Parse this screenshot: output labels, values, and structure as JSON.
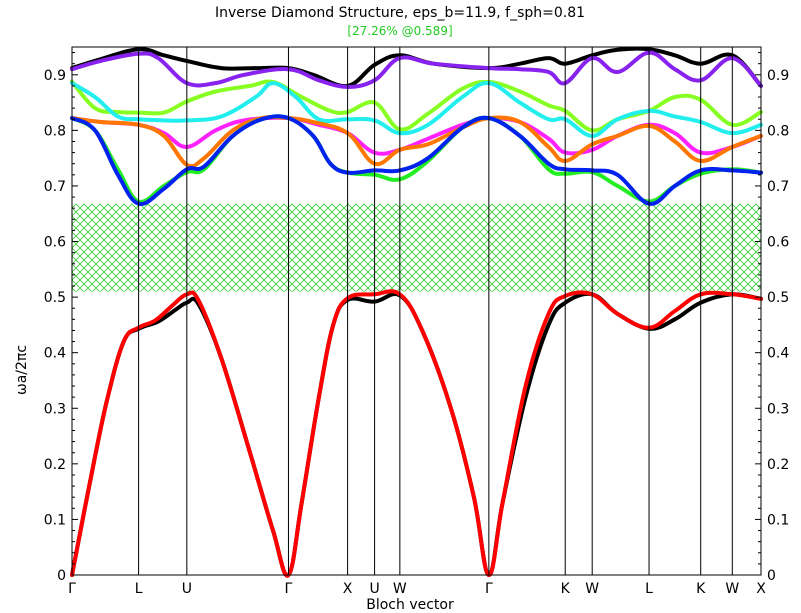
{
  "chart_data": {
    "type": "line",
    "title": "Inverse Diamond Structure, eps_b=11.9, f_sph=0.81",
    "subtitle": "[27.26% @0.589]",
    "subtitle_color": "#22cc22",
    "xlabel": "Bloch vector",
    "ylabel": "ωa/2πc",
    "ylim": [
      0,
      0.95
    ],
    "yticks": [
      "0",
      "0.1",
      "0.2",
      "0.3",
      "0.4",
      "0.5",
      "0.6",
      "0.7",
      "0.8",
      "0.9"
    ],
    "xlim": [
      0,
      12
    ],
    "kpoints": [
      {
        "label": "Γ",
        "x": 0
      },
      {
        "label": "L",
        "x": 1.16
      },
      {
        "label": "U",
        "x": 2.0
      },
      {
        "label": "Γ",
        "x": 3.77
      },
      {
        "label": "X",
        "x": 4.8
      },
      {
        "label": "U",
        "x": 5.27
      },
      {
        "label": "W",
        "x": 5.71
      },
      {
        "label": "Γ",
        "x": 7.26
      },
      {
        "label": "K",
        "x": 8.59
      },
      {
        "label": "W",
        "x": 9.06
      },
      {
        "label": "L",
        "x": 10.05
      },
      {
        "label": "K",
        "x": 10.95
      },
      {
        "label": "W",
        "x": 11.5
      },
      {
        "label": "X",
        "x": 12
      }
    ],
    "gap": {
      "from": 0.51,
      "to": 0.668,
      "color": "#33cc33",
      "label": "27.26% @0.589"
    },
    "grid": false,
    "series": [
      {
        "color": "#ff0000",
        "values": [
          [
            0,
            0
          ],
          [
            0.3,
            0.16
          ],
          [
            0.6,
            0.31
          ],
          [
            0.9,
            0.42
          ],
          [
            1.16,
            0.445
          ],
          [
            1.45,
            0.458
          ],
          [
            1.75,
            0.485
          ],
          [
            2.0,
            0.505
          ],
          [
            2.2,
            0.495
          ],
          [
            2.6,
            0.39
          ],
          [
            3.1,
            0.22
          ],
          [
            3.5,
            0.08
          ],
          [
            3.77,
            0
          ],
          [
            4.0,
            0.13
          ],
          [
            4.3,
            0.32
          ],
          [
            4.55,
            0.45
          ],
          [
            4.8,
            0.498
          ],
          [
            5.27,
            0.505
          ],
          [
            5.71,
            0.505
          ],
          [
            6.1,
            0.44
          ],
          [
            6.6,
            0.3
          ],
          [
            7.0,
            0.14
          ],
          [
            7.26,
            0
          ],
          [
            7.5,
            0.13
          ],
          [
            7.9,
            0.34
          ],
          [
            8.3,
            0.47
          ],
          [
            8.59,
            0.502
          ],
          [
            9.06,
            0.505
          ],
          [
            9.5,
            0.47
          ],
          [
            10.05,
            0.445
          ],
          [
            10.5,
            0.475
          ],
          [
            10.95,
            0.505
          ],
          [
            11.5,
            0.505
          ],
          [
            12,
            0.497
          ]
        ]
      },
      {
        "color": "#000000",
        "values": [
          [
            0,
            0
          ],
          [
            0.3,
            0.16
          ],
          [
            0.6,
            0.31
          ],
          [
            0.9,
            0.42
          ],
          [
            1.16,
            0.443
          ],
          [
            1.5,
            0.456
          ],
          [
            1.8,
            0.477
          ],
          [
            2.0,
            0.49
          ],
          [
            2.2,
            0.488
          ],
          [
            2.6,
            0.39
          ],
          [
            3.1,
            0.22
          ],
          [
            3.5,
            0.08
          ],
          [
            3.77,
            0
          ],
          [
            4.0,
            0.13
          ],
          [
            4.3,
            0.32
          ],
          [
            4.55,
            0.45
          ],
          [
            4.8,
            0.495
          ],
          [
            5.27,
            0.492
          ],
          [
            5.71,
            0.503
          ],
          [
            6.1,
            0.44
          ],
          [
            6.6,
            0.3
          ],
          [
            7.0,
            0.14
          ],
          [
            7.26,
            0
          ],
          [
            7.5,
            0.13
          ],
          [
            7.9,
            0.32
          ],
          [
            8.3,
            0.45
          ],
          [
            8.59,
            0.49
          ],
          [
            9.06,
            0.505
          ],
          [
            9.5,
            0.47
          ],
          [
            10.05,
            0.443
          ],
          [
            10.5,
            0.46
          ],
          [
            10.95,
            0.49
          ],
          [
            11.5,
            0.505
          ],
          [
            12,
            0.497
          ]
        ]
      },
      {
        "color": "#0022ee",
        "values": [
          [
            0,
            0.822
          ],
          [
            0.4,
            0.8
          ],
          [
            0.8,
            0.72
          ],
          [
            1.16,
            0.668
          ],
          [
            1.6,
            0.695
          ],
          [
            2.0,
            0.73
          ],
          [
            2.3,
            0.735
          ],
          [
            2.8,
            0.79
          ],
          [
            3.3,
            0.82
          ],
          [
            3.77,
            0.822
          ],
          [
            4.2,
            0.79
          ],
          [
            4.5,
            0.74
          ],
          [
            4.8,
            0.724
          ],
          [
            5.27,
            0.728
          ],
          [
            5.71,
            0.728
          ],
          [
            6.2,
            0.75
          ],
          [
            6.8,
            0.805
          ],
          [
            7.26,
            0.822
          ],
          [
            7.8,
            0.79
          ],
          [
            8.3,
            0.74
          ],
          [
            8.59,
            0.73
          ],
          [
            9.06,
            0.728
          ],
          [
            9.5,
            0.72
          ],
          [
            10.05,
            0.668
          ],
          [
            10.5,
            0.7
          ],
          [
            10.95,
            0.728
          ],
          [
            11.5,
            0.728
          ],
          [
            12,
            0.724
          ]
        ]
      },
      {
        "color": "#22ee22",
        "values": [
          [
            0,
            0.822
          ],
          [
            0.4,
            0.8
          ],
          [
            0.8,
            0.73
          ],
          [
            1.16,
            0.672
          ],
          [
            1.6,
            0.7
          ],
          [
            2.0,
            0.725
          ],
          [
            2.3,
            0.73
          ],
          [
            2.8,
            0.79
          ],
          [
            3.3,
            0.82
          ],
          [
            3.77,
            0.822
          ],
          [
            4.2,
            0.79
          ],
          [
            4.5,
            0.74
          ],
          [
            4.8,
            0.724
          ],
          [
            5.27,
            0.72
          ],
          [
            5.71,
            0.712
          ],
          [
            6.2,
            0.745
          ],
          [
            6.8,
            0.805
          ],
          [
            7.26,
            0.822
          ],
          [
            7.8,
            0.79
          ],
          [
            8.3,
            0.73
          ],
          [
            8.59,
            0.722
          ],
          [
            9.06,
            0.725
          ],
          [
            9.5,
            0.7
          ],
          [
            10.05,
            0.672
          ],
          [
            10.5,
            0.7
          ],
          [
            10.95,
            0.722
          ],
          [
            11.5,
            0.73
          ],
          [
            12,
            0.724
          ]
        ]
      },
      {
        "color": "#ff7700",
        "values": [
          [
            0,
            0.822
          ],
          [
            0.5,
            0.815
          ],
          [
            1.16,
            0.81
          ],
          [
            1.6,
            0.79
          ],
          [
            2.0,
            0.738
          ],
          [
            2.3,
            0.75
          ],
          [
            2.8,
            0.8
          ],
          [
            3.3,
            0.822
          ],
          [
            3.77,
            0.822
          ],
          [
            4.2,
            0.815
          ],
          [
            4.8,
            0.795
          ],
          [
            5.27,
            0.74
          ],
          [
            5.71,
            0.765
          ],
          [
            6.2,
            0.775
          ],
          [
            6.8,
            0.805
          ],
          [
            7.26,
            0.822
          ],
          [
            7.8,
            0.815
          ],
          [
            8.3,
            0.77
          ],
          [
            8.59,
            0.745
          ],
          [
            9.06,
            0.775
          ],
          [
            9.5,
            0.79
          ],
          [
            10.05,
            0.808
          ],
          [
            10.5,
            0.78
          ],
          [
            10.95,
            0.745
          ],
          [
            11.5,
            0.77
          ],
          [
            12,
            0.79
          ]
        ]
      },
      {
        "color": "#ff22ff",
        "values": [
          [
            0,
            0.822
          ],
          [
            0.5,
            0.815
          ],
          [
            1.16,
            0.81
          ],
          [
            1.6,
            0.795
          ],
          [
            2.0,
            0.77
          ],
          [
            2.5,
            0.8
          ],
          [
            3.0,
            0.818
          ],
          [
            3.77,
            0.822
          ],
          [
            4.3,
            0.81
          ],
          [
            4.8,
            0.795
          ],
          [
            5.27,
            0.76
          ],
          [
            5.71,
            0.765
          ],
          [
            6.2,
            0.785
          ],
          [
            6.8,
            0.81
          ],
          [
            7.26,
            0.822
          ],
          [
            7.8,
            0.815
          ],
          [
            8.3,
            0.785
          ],
          [
            8.59,
            0.76
          ],
          [
            9.06,
            0.765
          ],
          [
            9.5,
            0.79
          ],
          [
            10.05,
            0.81
          ],
          [
            10.5,
            0.795
          ],
          [
            10.95,
            0.76
          ],
          [
            11.5,
            0.77
          ],
          [
            12,
            0.79
          ]
        ]
      },
      {
        "color": "#22eeee",
        "values": [
          [
            0,
            0.885
          ],
          [
            0.4,
            0.86
          ],
          [
            0.8,
            0.825
          ],
          [
            1.16,
            0.82
          ],
          [
            1.6,
            0.818
          ],
          [
            2.0,
            0.818
          ],
          [
            2.6,
            0.825
          ],
          [
            3.2,
            0.86
          ],
          [
            3.5,
            0.885
          ],
          [
            3.9,
            0.86
          ],
          [
            4.3,
            0.82
          ],
          [
            4.8,
            0.82
          ],
          [
            5.27,
            0.818
          ],
          [
            5.71,
            0.795
          ],
          [
            6.2,
            0.81
          ],
          [
            6.8,
            0.86
          ],
          [
            7.26,
            0.885
          ],
          [
            7.8,
            0.85
          ],
          [
            8.3,
            0.82
          ],
          [
            8.59,
            0.82
          ],
          [
            9.06,
            0.79
          ],
          [
            9.5,
            0.82
          ],
          [
            10.05,
            0.835
          ],
          [
            10.5,
            0.825
          ],
          [
            10.95,
            0.815
          ],
          [
            11.5,
            0.795
          ],
          [
            12,
            0.81
          ]
        ]
      },
      {
        "color": "#88ff22",
        "values": [
          [
            0,
            0.888
          ],
          [
            0.4,
            0.84
          ],
          [
            0.8,
            0.833
          ],
          [
            1.16,
            0.832
          ],
          [
            1.6,
            0.832
          ],
          [
            2.0,
            0.852
          ],
          [
            2.5,
            0.87
          ],
          [
            3.1,
            0.88
          ],
          [
            3.5,
            0.887
          ],
          [
            4.0,
            0.86
          ],
          [
            4.5,
            0.835
          ],
          [
            4.8,
            0.833
          ],
          [
            5.27,
            0.85
          ],
          [
            5.71,
            0.802
          ],
          [
            6.2,
            0.83
          ],
          [
            6.8,
            0.875
          ],
          [
            7.26,
            0.887
          ],
          [
            7.8,
            0.87
          ],
          [
            8.3,
            0.845
          ],
          [
            8.59,
            0.835
          ],
          [
            9.06,
            0.8
          ],
          [
            9.5,
            0.82
          ],
          [
            10.05,
            0.835
          ],
          [
            10.5,
            0.86
          ],
          [
            10.95,
            0.855
          ],
          [
            11.5,
            0.81
          ],
          [
            12,
            0.833
          ]
        ]
      },
      {
        "color": "#8822ee",
        "values": [
          [
            0,
            0.91
          ],
          [
            0.5,
            0.925
          ],
          [
            1.16,
            0.938
          ],
          [
            1.5,
            0.93
          ],
          [
            2.0,
            0.885
          ],
          [
            2.5,
            0.885
          ],
          [
            3.0,
            0.9
          ],
          [
            3.77,
            0.91
          ],
          [
            4.3,
            0.89
          ],
          [
            4.8,
            0.878
          ],
          [
            5.27,
            0.89
          ],
          [
            5.71,
            0.93
          ],
          [
            6.3,
            0.92
          ],
          [
            7.26,
            0.912
          ],
          [
            7.8,
            0.91
          ],
          [
            8.3,
            0.905
          ],
          [
            8.59,
            0.885
          ],
          [
            9.06,
            0.93
          ],
          [
            9.5,
            0.905
          ],
          [
            10.05,
            0.94
          ],
          [
            10.5,
            0.91
          ],
          [
            10.95,
            0.89
          ],
          [
            11.5,
            0.93
          ],
          [
            12,
            0.88
          ]
        ]
      },
      {
        "color": "#000000",
        "values": [
          [
            0,
            0.912
          ],
          [
            0.5,
            0.928
          ],
          [
            1.16,
            0.946
          ],
          [
            1.6,
            0.935
          ],
          [
            2.0,
            0.925
          ],
          [
            2.6,
            0.912
          ],
          [
            3.2,
            0.912
          ],
          [
            3.77,
            0.912
          ],
          [
            4.2,
            0.9
          ],
          [
            4.8,
            0.88
          ],
          [
            5.27,
            0.918
          ],
          [
            5.71,
            0.935
          ],
          [
            6.3,
            0.92
          ],
          [
            7.26,
            0.912
          ],
          [
            7.8,
            0.92
          ],
          [
            8.3,
            0.93
          ],
          [
            8.59,
            0.92
          ],
          [
            9.06,
            0.935
          ],
          [
            9.5,
            0.945
          ],
          [
            10.05,
            0.946
          ],
          [
            10.5,
            0.935
          ],
          [
            10.95,
            0.92
          ],
          [
            11.5,
            0.935
          ],
          [
            12,
            0.88
          ]
        ]
      }
    ]
  }
}
